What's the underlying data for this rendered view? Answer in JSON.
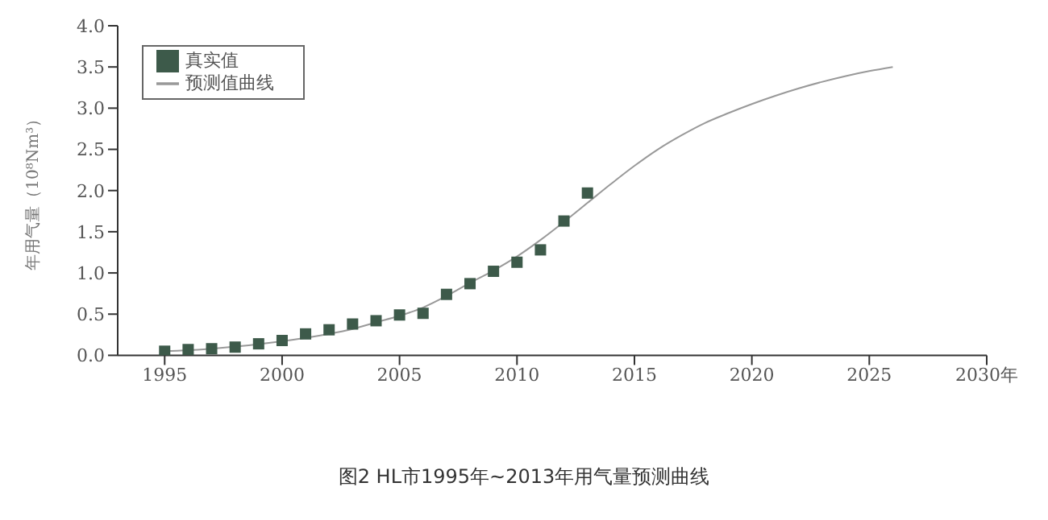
{
  "chart_data": {
    "type": "scatter",
    "title": "图2 HL市1995年~2013年用气量预测曲线",
    "ylabel": "年用气量（10⁸Nm³）",
    "xlim": [
      1993,
      2030
    ],
    "xticks": [
      1995,
      2000,
      2005,
      2010,
      2015,
      2020,
      2025,
      {
        "value": 2030,
        "label": "2030年"
      }
    ],
    "ylim": [
      0,
      4
    ],
    "yticks": [
      {
        "value": 0,
        "label": "0.0"
      },
      0.5,
      {
        "value": 1,
        "label": "1.0"
      },
      1.5,
      {
        "value": 2,
        "label": "2.0"
      },
      2.5,
      {
        "value": 3,
        "label": "3.0"
      },
      3.5,
      {
        "value": 4,
        "label": "4.0"
      }
    ],
    "grid": false,
    "legend": "top left",
    "series": [
      {
        "name": "真实值",
        "type": "scatter",
        "marker": "square",
        "color": "#3d5a4a",
        "x": [
          1995,
          1996,
          1997,
          1998,
          1999,
          2000,
          2001,
          2002,
          2003,
          2004,
          2005,
          2006,
          2007,
          2008,
          2009,
          2010,
          2011,
          2012,
          2013
        ],
        "values": [
          0.05,
          0.07,
          0.08,
          0.1,
          0.14,
          0.18,
          0.26,
          0.31,
          0.38,
          0.42,
          0.49,
          0.51,
          0.74,
          0.87,
          1.02,
          1.13,
          1.28,
          1.63,
          1.97
        ]
      },
      {
        "name": "预测值曲线",
        "type": "line",
        "marker": "none",
        "color": "#999999",
        "x": [
          1995,
          1997,
          2000,
          2002,
          2003,
          2004,
          2005,
          2006,
          2007,
          2008,
          2009,
          2010,
          2011,
          2012,
          2013,
          2014,
          2015,
          2016,
          2017,
          2018,
          2019,
          2020,
          2021,
          2022,
          2023,
          2024,
          2025,
          2026
        ],
        "values": [
          0.05,
          0.08,
          0.17,
          0.26,
          0.32,
          0.4,
          0.48,
          0.58,
          0.72,
          0.88,
          1.03,
          1.2,
          1.4,
          1.62,
          1.85,
          2.08,
          2.3,
          2.5,
          2.67,
          2.82,
          2.94,
          3.05,
          3.15,
          3.24,
          3.32,
          3.39,
          3.45,
          3.5
        ]
      }
    ]
  }
}
